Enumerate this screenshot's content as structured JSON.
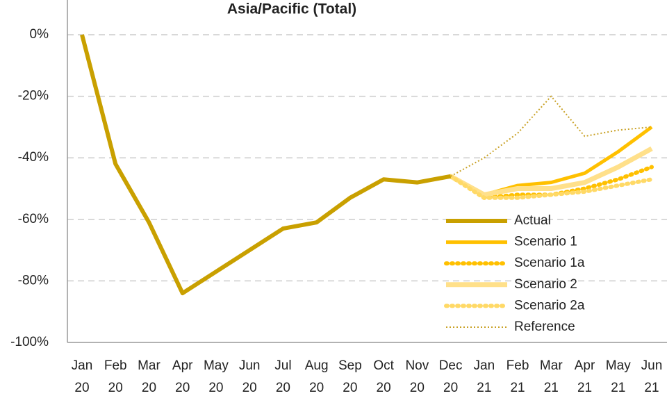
{
  "chart_data": {
    "type": "line",
    "title": "Asia/Pacific (Total)",
    "categories": [
      "Jan 20",
      "Feb 20",
      "Mar 20",
      "Apr 20",
      "May 20",
      "Jun 20",
      "Jul 20",
      "Aug 20",
      "Sep 20",
      "Oct 20",
      "Nov 20",
      "Dec 20",
      "Jan 21",
      "Feb 21",
      "Mar 21",
      "Apr 21",
      "May 21",
      "Jun 21"
    ],
    "series": [
      {
        "name": "Actual",
        "color": "#c9a000",
        "values": [
          0,
          -42,
          -61,
          -84,
          -77,
          -70,
          -63,
          -61,
          -53,
          -47,
          -48,
          -46,
          null,
          null,
          null,
          null,
          null,
          null
        ]
      },
      {
        "name": "Scenario 1",
        "color": "#ffc000",
        "values": [
          null,
          null,
          null,
          null,
          null,
          null,
          null,
          null,
          null,
          null,
          null,
          -46,
          -52,
          -49,
          -48,
          -45,
          -38,
          -30
        ]
      },
      {
        "name": "Scenario 1a",
        "color": "#ffc000",
        "values": [
          null,
          null,
          null,
          null,
          null,
          null,
          null,
          null,
          null,
          null,
          null,
          -46,
          -53,
          -52,
          -52,
          -50,
          -47,
          -43
        ]
      },
      {
        "name": "Scenario 2",
        "color": "#ffe08a",
        "values": [
          null,
          null,
          null,
          null,
          null,
          null,
          null,
          null,
          null,
          null,
          null,
          -46,
          -52,
          -50,
          -50,
          -48,
          -43,
          -37
        ]
      },
      {
        "name": "Scenario 2a",
        "color": "#ffd966",
        "values": [
          null,
          null,
          null,
          null,
          null,
          null,
          null,
          null,
          null,
          null,
          null,
          -46,
          -53,
          -53,
          -52,
          -51,
          -49,
          -47
        ]
      },
      {
        "name": "Reference",
        "color": "#c9a227",
        "values": [
          null,
          null,
          null,
          null,
          null,
          null,
          null,
          null,
          null,
          null,
          null,
          -46,
          -40,
          -32,
          -20,
          -33,
          -31,
          -30
        ]
      }
    ],
    "ylim": [
      -100,
      0
    ],
    "yticks": [
      {
        "value": -100,
        "label": "-100%"
      },
      {
        "value": -80,
        "label": "-80%"
      },
      {
        "value": -60,
        "label": "-60%"
      },
      {
        "value": -40,
        "label": "-40%"
      },
      {
        "value": -20,
        "label": "-20%"
      },
      {
        "value": 0,
        "label": "0%"
      }
    ],
    "grid": true
  }
}
